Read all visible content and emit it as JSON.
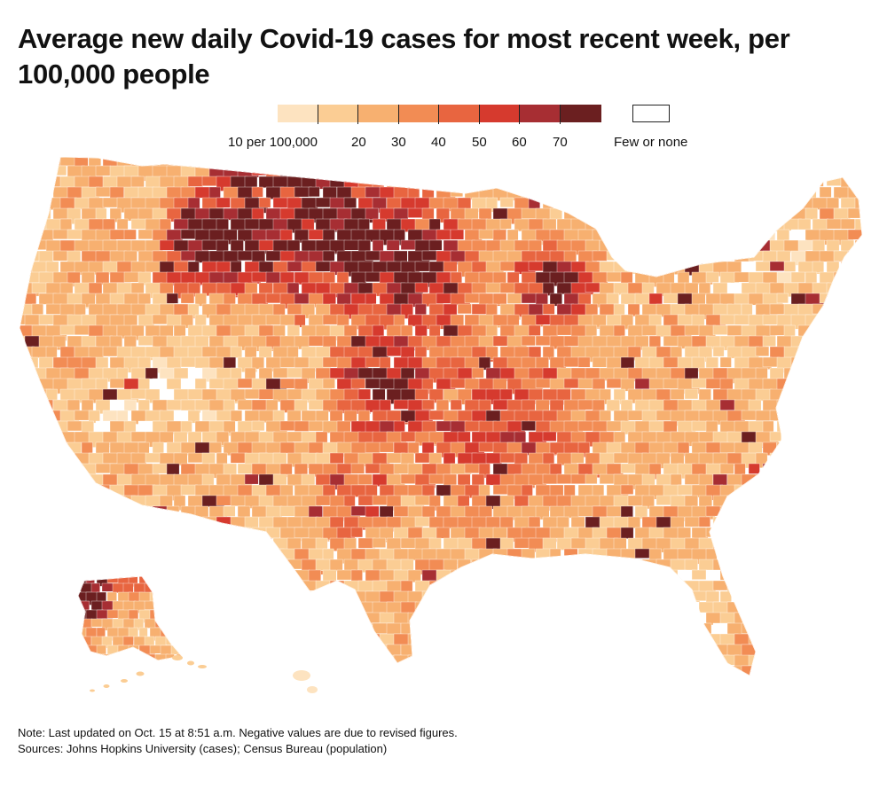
{
  "title": "Average new daily Covid-19 cases for most recent week, per 100,000 people",
  "legend": {
    "labels": [
      "10 per 100,000",
      "20",
      "30",
      "40",
      "50",
      "60",
      "70"
    ],
    "none_label": "Few or none",
    "colors": [
      "#fde3c0",
      "#fbcd94",
      "#f7b070",
      "#f28c54",
      "#e86540",
      "#d63a2e",
      "#a72e33",
      "#6b1f20"
    ],
    "none_color": "#ffffff"
  },
  "note": "Note: Last updated on Oct. 15 at 8:51 a.m. Negative values are due to revised figures.",
  "sources": "Sources: Johns Hopkins University (cases); Census Bureau (population)"
}
